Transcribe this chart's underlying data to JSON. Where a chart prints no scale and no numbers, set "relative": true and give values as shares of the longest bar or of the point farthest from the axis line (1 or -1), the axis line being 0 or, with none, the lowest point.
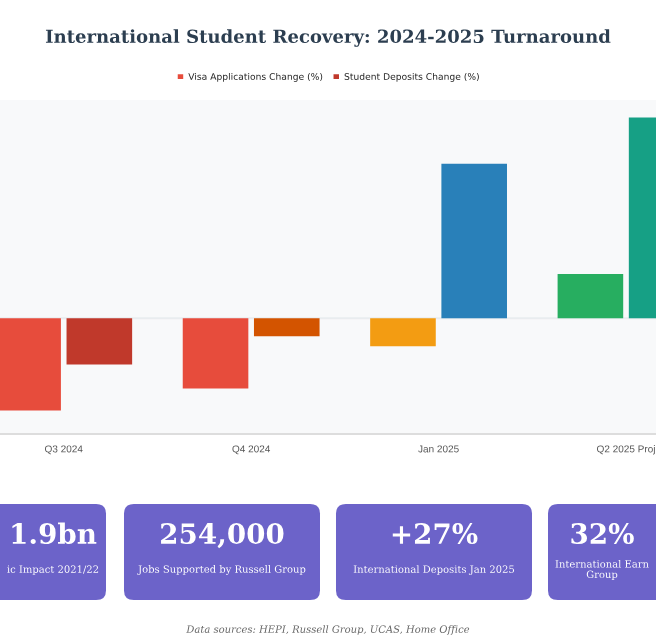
{
  "chart_data": [
    {
      "type": "bar",
      "title": "International Student Recovery: 2024-2025 Turnaround",
      "relative": true,
      "categories": [
        "Q3 2024",
        "Q4 2024",
        "Jan 2025",
        "Q2 2025 Proj"
      ],
      "series": [
        {
          "name": "Visa Applications Change (%)",
          "color": "#e74c3c",
          "colors": [
            "#e74c3c",
            "#e74c3c",
            "#f39c12",
            "#27ae60"
          ],
          "values": [
            -0.46,
            -0.35,
            -0.14,
            0.22
          ]
        },
        {
          "name": "Student Deposits Change (%)",
          "color": "#c0392b",
          "colors": [
            "#c0392b",
            "#d35400",
            "#2980b9",
            "#16a085"
          ],
          "values": [
            -0.23,
            -0.09,
            0.77,
            1.0
          ]
        }
      ],
      "legend": "top",
      "grid": false
    },
    {
      "type": "other",
      "annotations": [
        "1.9bn",
        "ic Impact 2021/22",
        "254,000",
        "Jobs Supported by Russell Group",
        "+27%",
        "International Deposits Jan 2025",
        "32%",
        "International Earn\nGroup",
        "Data sources: HEPI, Russell Group, UCAS, Home Office"
      ]
    }
  ]
}
